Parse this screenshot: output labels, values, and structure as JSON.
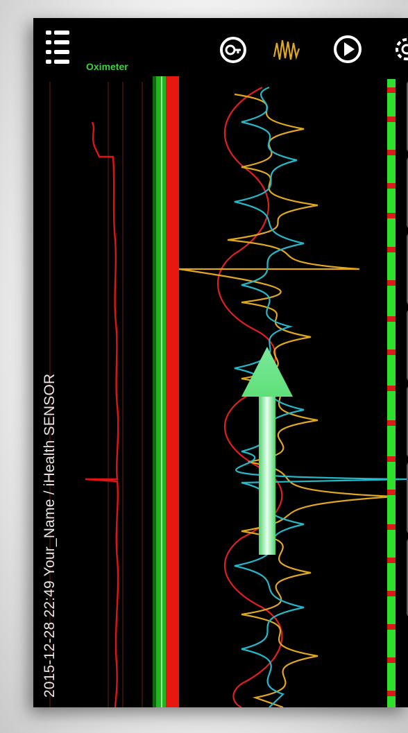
{
  "header": {
    "oximeter_label": "Oximeter",
    "subtitle": "2015-12-28 22:49   Your_Name  /  iHealth SENSOR"
  },
  "toolbar": {
    "icons": [
      "menu-list-icon",
      "timer-icon",
      "waveform-icon",
      "play-icon",
      "gear-icon"
    ]
  },
  "overlay": {
    "arrow_icon": "up-arrow-icon",
    "arrow_color": "#5fe07a"
  },
  "colors": {
    "pulse_trace": "#e01414",
    "spo2_bar_green": "#23b323",
    "spo2_bar_red": "#e8170f",
    "wave_red": "#e02020",
    "wave_yellow": "#e0a81e",
    "wave_cyan": "#25b8c8",
    "status_green": "#2fe02f",
    "status_red": "#d91b1b",
    "background": "#000000"
  }
}
